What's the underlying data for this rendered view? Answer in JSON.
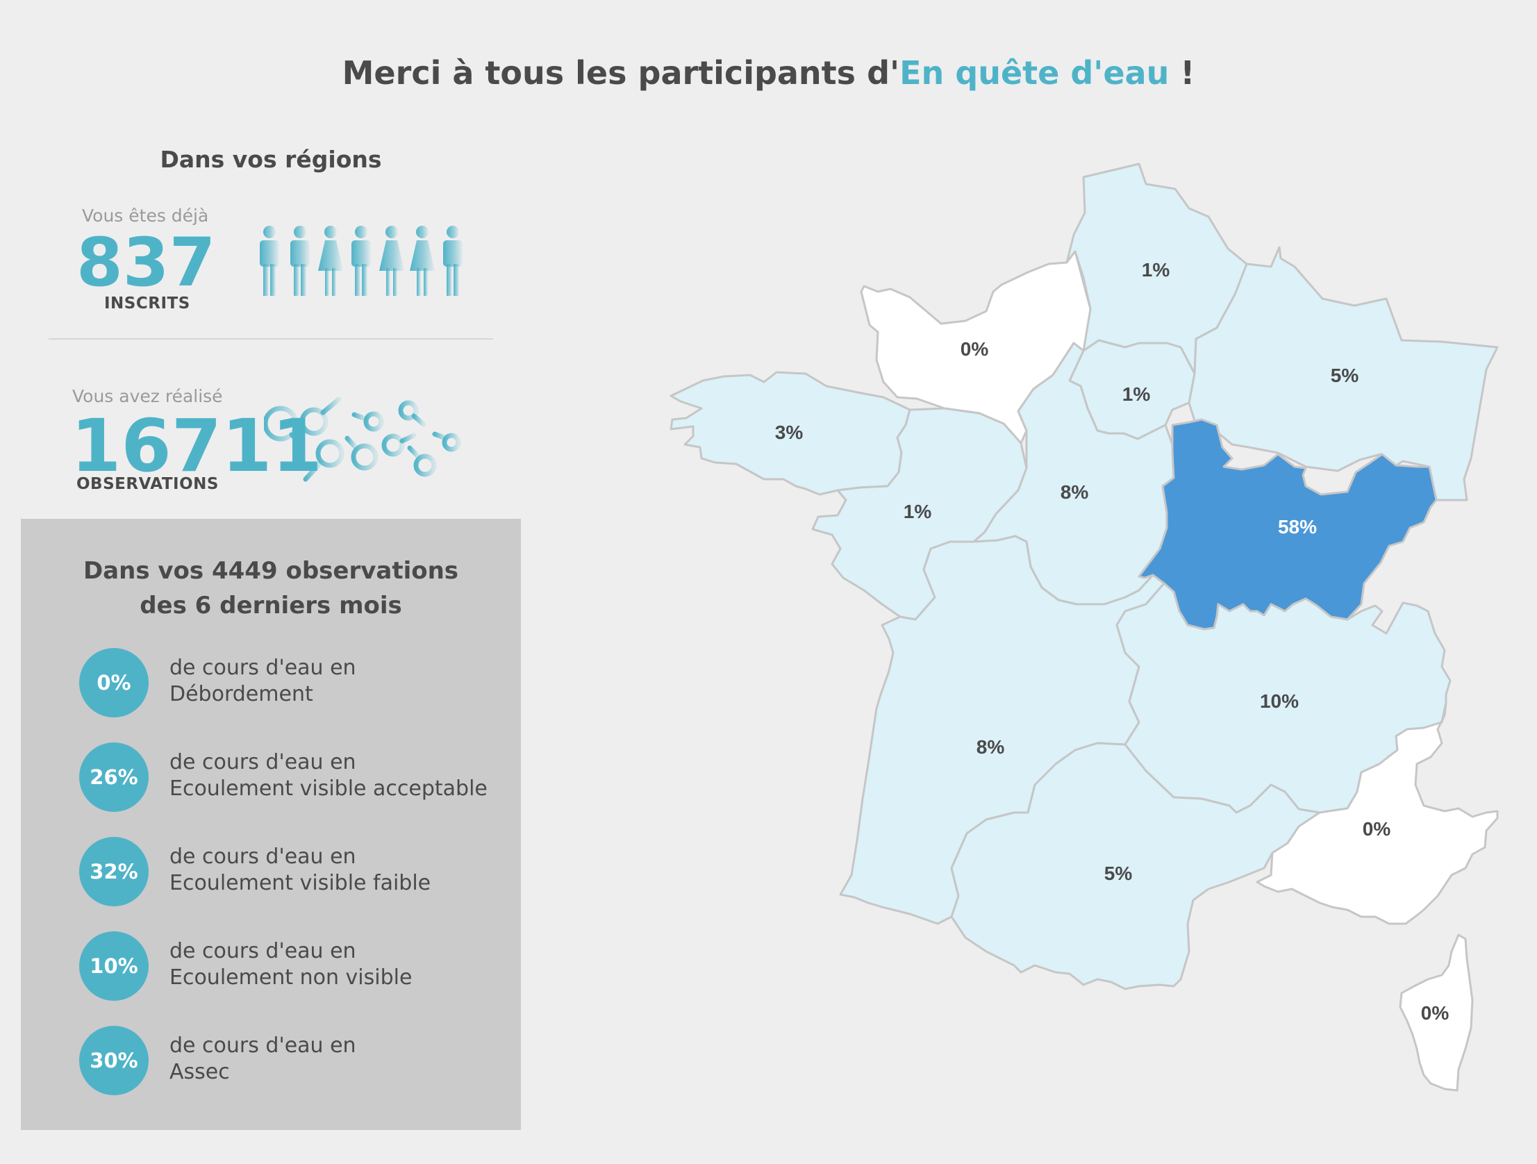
{
  "header": {
    "title_before": "Merci à tous les participants d'",
    "title_accent": "En quête d'eau",
    "title_after": " !"
  },
  "regions_panel": {
    "title": "Dans vos régions",
    "registered": {
      "intro": "Vous êtes déjà",
      "value": "837",
      "label": "INSCRITS",
      "icon": "people-icon"
    },
    "observations": {
      "intro": "Vous avez réalisé",
      "value": "16711",
      "label": "OBSERVATIONS",
      "icon": "magnifier-icon"
    }
  },
  "observations_panel": {
    "title_line1": "Dans vos 4449 observations",
    "title_line2": "des 6 derniers mois",
    "rows": [
      {
        "percent": "0%",
        "line1": "de cours d'eau en",
        "line2": "Débordement"
      },
      {
        "percent": "26%",
        "line1": "de cours d'eau en",
        "line2": "Ecoulement visible acceptable"
      },
      {
        "percent": "32%",
        "line1": "de cours d'eau en",
        "line2": "Ecoulement visible faible"
      },
      {
        "percent": "10%",
        "line1": "de cours d'eau en",
        "line2": "Ecoulement non visible"
      },
      {
        "percent": "30%",
        "line1": "de cours d'eau en",
        "line2": "Assec"
      }
    ]
  },
  "map": {
    "colors": {
      "zero": "#ffffff",
      "low": "#dcf1f8",
      "highlight": "#4a97d7",
      "border": "#c6c6c6",
      "label": "#4a4a4a",
      "label_highlight": "#ffffff"
    },
    "regions": [
      {
        "id": "hauts-de-france",
        "percent": "1%"
      },
      {
        "id": "normandie",
        "percent": "0%"
      },
      {
        "id": "ile-de-france",
        "percent": "1%"
      },
      {
        "id": "grand-est",
        "percent": "5%"
      },
      {
        "id": "bretagne",
        "percent": "3%"
      },
      {
        "id": "pays-de-la-loire",
        "percent": "1%"
      },
      {
        "id": "centre-val-de-loire",
        "percent": "8%"
      },
      {
        "id": "bourgogne-franche-comte",
        "percent": "58%"
      },
      {
        "id": "nouvelle-aquitaine",
        "percent": "8%"
      },
      {
        "id": "auvergne-rhone-alpes",
        "percent": "10%"
      },
      {
        "id": "occitanie",
        "percent": "5%"
      },
      {
        "id": "provence-alpes-cote-dazur",
        "percent": "0%"
      },
      {
        "id": "corse",
        "percent": "0%"
      }
    ]
  }
}
